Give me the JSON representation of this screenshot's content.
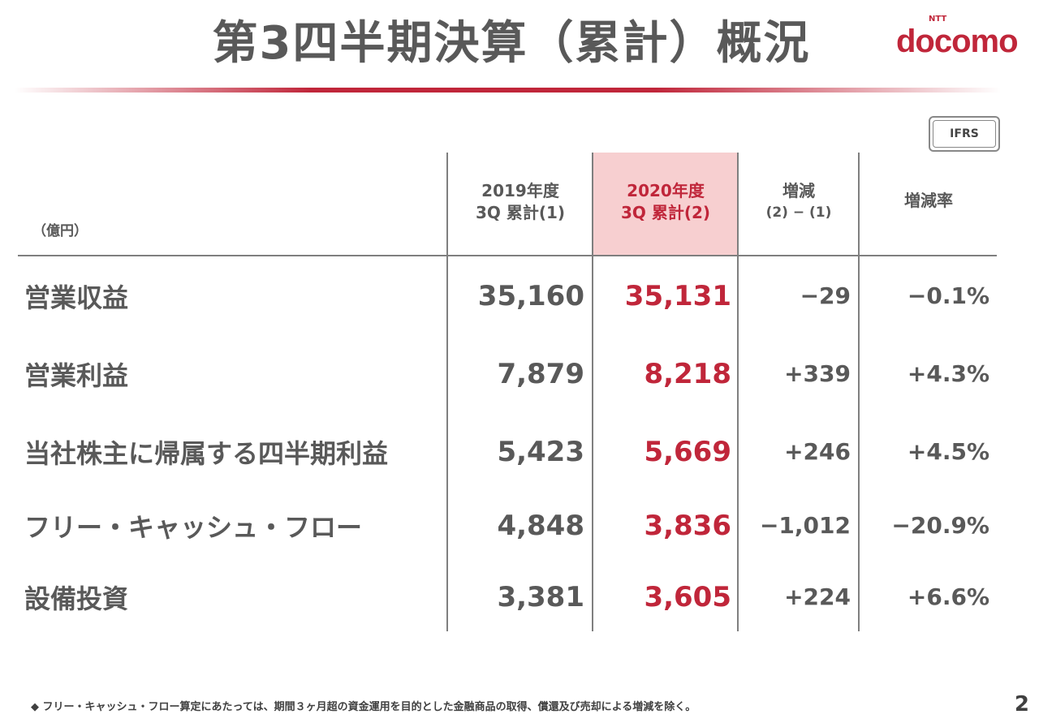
{
  "title": "第3四半期決算（累計）概況",
  "logo": {
    "ntt": "NTT",
    "brand": "docomo"
  },
  "badge": "IFRS",
  "unit": "（億円）",
  "headers": [
    {
      "line1": "2019年度",
      "line2": "3Q 累計(1)"
    },
    {
      "line1": "2020年度",
      "line2": "3Q 累計(2)"
    },
    {
      "line1": "増減",
      "line2": "(2) − (1)"
    },
    {
      "line1": "増減率",
      "line2": ""
    }
  ],
  "rows": [
    {
      "label": "営業収益",
      "fy2019": "35,160",
      "fy2020": "35,131",
      "diff": "−29",
      "rate": "−0.1%"
    },
    {
      "label": "営業利益",
      "fy2019": "7,879",
      "fy2020": "8,218",
      "diff": "+339",
      "rate": "+4.3%"
    },
    {
      "label": "当社株主に帰属する四半期利益",
      "fy2019": "5,423",
      "fy2020": "5,669",
      "diff": "+246",
      "rate": "+4.5%"
    },
    {
      "label": "フリー・キャッシュ・フロー",
      "fy2019": "4,848",
      "fy2020": "3,836",
      "diff": "−1,012",
      "rate": "−20.9%"
    },
    {
      "label": "設備投資",
      "fy2019": "3,381",
      "fy2020": "3,605",
      "diff": "+224",
      "rate": "+6.6%"
    }
  ],
  "footnote": "◆ フリー・キャッシュ・フロー算定にあたっては、期間３ヶ月超の資金運用を目的とした金融商品の取得、償還及び売却による増減を除く。",
  "page_number": "2",
  "colors": {
    "accent": "#c0263a",
    "text": "#595959",
    "highlight": "#f7cfd0"
  }
}
